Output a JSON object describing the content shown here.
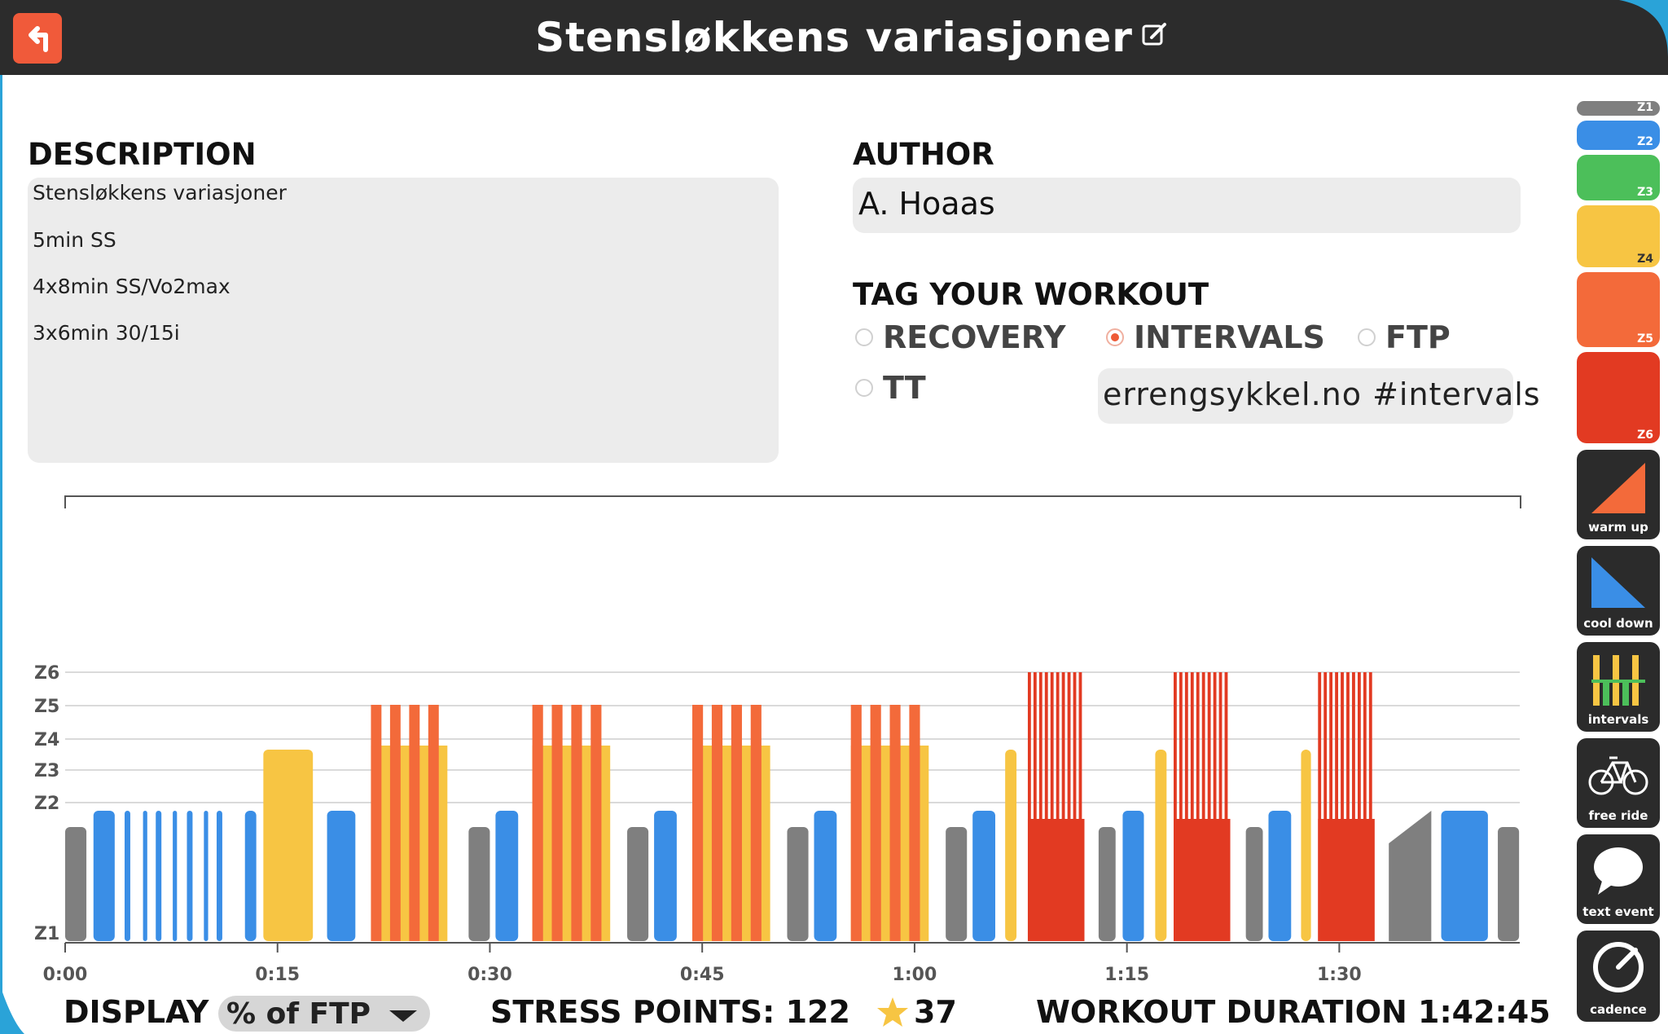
{
  "window": {
    "title": "Stensløkkens variasjoner"
  },
  "description": {
    "heading": "DESCRIPTION",
    "lines": [
      "Stensløkkens variasjoner",
      "5min SS",
      "4x8min SS/Vo2max",
      "3x6min 30/15i"
    ]
  },
  "author": {
    "heading": "AUTHOR",
    "value": "A. Hoaas"
  },
  "tags": {
    "heading": "TAG YOUR WORKOUT",
    "options": [
      {
        "label": "RECOVERY",
        "selected": false
      },
      {
        "label": "INTERVALS",
        "selected": true
      },
      {
        "label": "FTP",
        "selected": false
      },
      {
        "label": "TT",
        "selected": false
      }
    ],
    "input_value": "errengsykkel.no #intervals"
  },
  "bottom": {
    "display_label": "DISPLAY",
    "display_value": "% of FTP",
    "stress_points": "STRESS POINTS: 122",
    "rating": "37",
    "duration": "WORKOUT DURATION 1:42:45"
  },
  "sidebar": {
    "zones": [
      "Z1",
      "Z2",
      "Z3",
      "Z4",
      "Z5",
      "Z6"
    ],
    "tools": [
      "warm up",
      "cool down",
      "intervals",
      "free ride",
      "text event",
      "cadence"
    ]
  },
  "colors": {
    "z1": "#7f7f7f",
    "z2": "#3a8ee6",
    "z3": "#4cbf5a",
    "z4": "#f7c543",
    "z5": "#f36a3a",
    "z6": "#e23a22",
    "titlebar": "#2c2c2c",
    "accent": "#ee5a36"
  },
  "chart_data": {
    "type": "bar",
    "x_ticks": [
      "0:00",
      "0:15",
      "0:30",
      "0:45",
      "1:00",
      "1:15",
      "1:30"
    ],
    "y_zones": [
      "Z1",
      "Z2",
      "Z3",
      "Z4",
      "Z5",
      "Z6"
    ],
    "blocks": [
      {
        "zone": "Z1",
        "start": 0.0,
        "end": 1.5
      },
      {
        "zone": "Z2",
        "start": 2.0,
        "end": 3.5
      },
      {
        "zone": "Z2",
        "start": 4.2,
        "end": 4.6
      },
      {
        "zone": "Z2",
        "start": 5.5,
        "end": 5.8
      },
      {
        "zone": "Z2",
        "start": 6.4,
        "end": 6.8
      },
      {
        "zone": "Z2",
        "start": 7.6,
        "end": 7.9
      },
      {
        "zone": "Z2",
        "start": 8.6,
        "end": 9.0
      },
      {
        "zone": "Z2",
        "start": 9.8,
        "end": 10.1
      },
      {
        "zone": "Z2",
        "start": 10.7,
        "end": 11.1
      },
      {
        "zone": "Z2",
        "start": 12.7,
        "end": 13.5
      },
      {
        "zone": "Z4",
        "start": 14.0,
        "end": 17.5
      },
      {
        "zone": "Z2",
        "start": 18.5,
        "end": 20.5
      },
      {
        "zone": "Z5",
        "start": 21.6,
        "end": 27.0
      },
      {
        "zone": "Z1",
        "start": 28.5,
        "end": 30.0
      },
      {
        "zone": "Z2",
        "start": 30.4,
        "end": 32.0
      },
      {
        "zone": "Z5",
        "start": 33.0,
        "end": 38.5
      },
      {
        "zone": "Z1",
        "start": 39.7,
        "end": 41.2
      },
      {
        "zone": "Z2",
        "start": 41.6,
        "end": 43.2
      },
      {
        "zone": "Z5",
        "start": 44.3,
        "end": 49.8
      },
      {
        "zone": "Z1",
        "start": 51.0,
        "end": 52.5
      },
      {
        "zone": "Z2",
        "start": 52.9,
        "end": 54.5
      },
      {
        "zone": "Z5",
        "start": 55.5,
        "end": 61.0
      },
      {
        "zone": "Z1",
        "start": 62.2,
        "end": 63.7
      },
      {
        "zone": "Z2",
        "start": 64.1,
        "end": 65.7
      },
      {
        "zone": "Z4",
        "start": 66.4,
        "end": 67.2
      },
      {
        "zone": "Z6",
        "start": 68.0,
        "end": 72.0
      },
      {
        "zone": "Z1",
        "start": 73.0,
        "end": 74.2
      },
      {
        "zone": "Z2",
        "start": 74.7,
        "end": 76.2
      },
      {
        "zone": "Z4",
        "start": 77.0,
        "end": 77.8
      },
      {
        "zone": "Z6",
        "start": 78.3,
        "end": 82.3
      },
      {
        "zone": "Z1",
        "start": 83.4,
        "end": 84.6
      },
      {
        "zone": "Z2",
        "start": 85.0,
        "end": 86.6
      },
      {
        "zone": "Z4",
        "start": 87.3,
        "end": 88.0
      },
      {
        "zone": "Z6",
        "start": 88.5,
        "end": 92.5
      },
      {
        "zone": "Z1",
        "start": 93.5,
        "end": 96.5
      },
      {
        "zone": "Z2",
        "start": 97.2,
        "end": 100.5
      },
      {
        "zone": "Z1",
        "start": 101.2,
        "end": 102.7
      }
    ]
  }
}
